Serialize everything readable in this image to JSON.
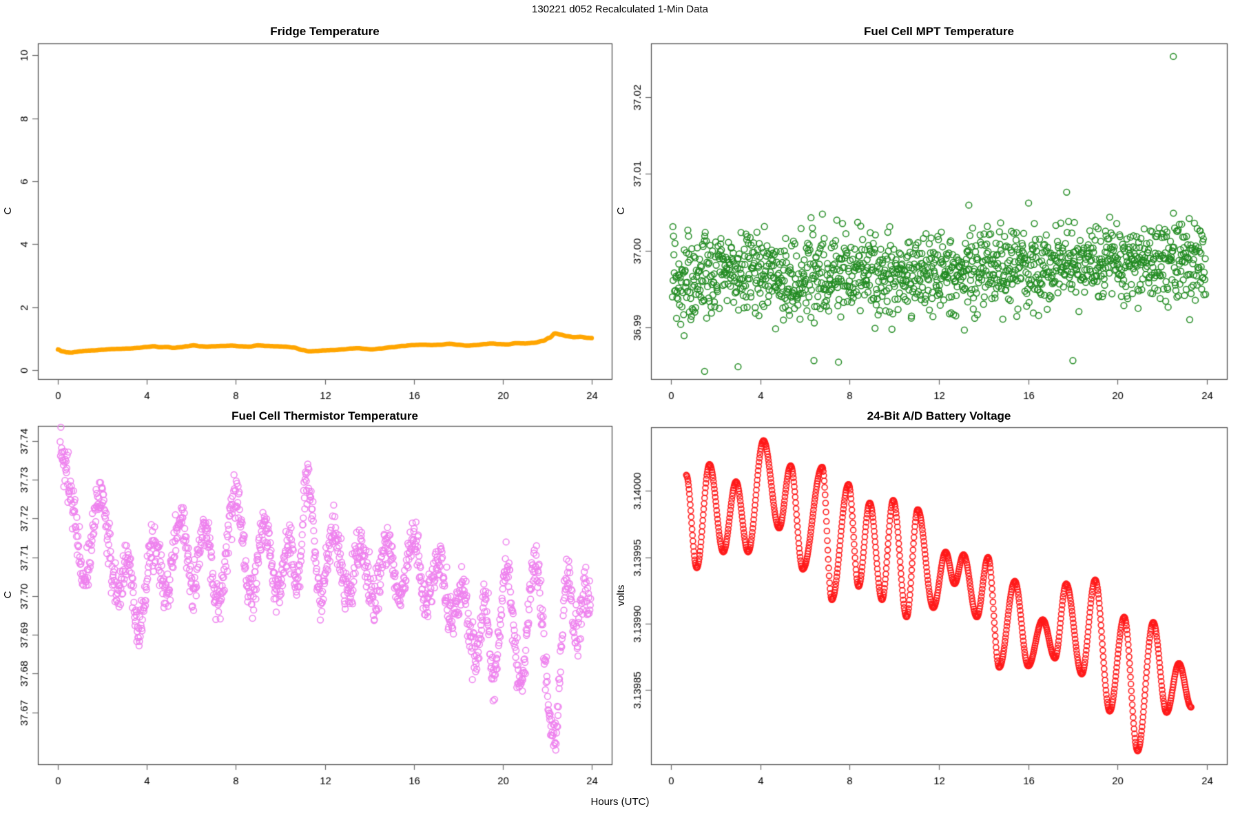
{
  "page": {
    "main_title": "130221   d052   Recalculated 1-Min Data",
    "xlabel_shared": "Hours (UTC)",
    "background": "#FFFFFF",
    "axis_color": "#444444",
    "tick_color": "#666666",
    "text_color": "#000000"
  },
  "chart_data": [
    {
      "id": "fridge-temperature",
      "type": "line",
      "title": "Fridge Temperature",
      "ylabel": "C",
      "xlabel": "",
      "color": "#FFA500",
      "xlim": [
        -0.9,
        24.9
      ],
      "ylim": [
        -0.28,
        10.38
      ],
      "xticks": [
        0,
        4,
        8,
        12,
        16,
        20,
        24
      ],
      "xtick_labels": [
        "0",
        "4",
        "8",
        "12",
        "16",
        "20",
        "24"
      ],
      "yticks": [
        0,
        2,
        4,
        6,
        8,
        10
      ],
      "ytick_labels": [
        "0",
        "2",
        "4",
        "6",
        "8",
        "10"
      ],
      "grid": false,
      "legend": null,
      "render": {
        "mode": "thick-line",
        "sample_minutes": 3,
        "line_width": 6.5
      },
      "anchors": [
        [
          0,
          0.66
        ],
        [
          0.2,
          0.6
        ],
        [
          0.4,
          0.57
        ],
        [
          0.6,
          0.56
        ],
        [
          0.8,
          0.58
        ],
        [
          1,
          0.6
        ],
        [
          1.3,
          0.62
        ],
        [
          1.6,
          0.63
        ],
        [
          2,
          0.65
        ],
        [
          2.4,
          0.67
        ],
        [
          2.8,
          0.68
        ],
        [
          3.2,
          0.69
        ],
        [
          3.6,
          0.71
        ],
        [
          4,
          0.74
        ],
        [
          4.3,
          0.76
        ],
        [
          4.6,
          0.73
        ],
        [
          4.9,
          0.74
        ],
        [
          5.2,
          0.71
        ],
        [
          5.5,
          0.73
        ],
        [
          5.8,
          0.76
        ],
        [
          6.1,
          0.79
        ],
        [
          6.4,
          0.76
        ],
        [
          6.7,
          0.75
        ],
        [
          7,
          0.76
        ],
        [
          7.4,
          0.77
        ],
        [
          7.8,
          0.78
        ],
        [
          8.2,
          0.76
        ],
        [
          8.6,
          0.75
        ],
        [
          9,
          0.79
        ],
        [
          9.4,
          0.77
        ],
        [
          9.8,
          0.76
        ],
        [
          10.2,
          0.75
        ],
        [
          10.6,
          0.72
        ],
        [
          11,
          0.64
        ],
        [
          11.3,
          0.6
        ],
        [
          11.6,
          0.61
        ],
        [
          12,
          0.63
        ],
        [
          12.4,
          0.64
        ],
        [
          12.8,
          0.66
        ],
        [
          13.2,
          0.69
        ],
        [
          13.5,
          0.7
        ],
        [
          13.8,
          0.68
        ],
        [
          14.1,
          0.66
        ],
        [
          14.5,
          0.69
        ],
        [
          15,
          0.73
        ],
        [
          15.5,
          0.77
        ],
        [
          16,
          0.8
        ],
        [
          16.4,
          0.81
        ],
        [
          16.8,
          0.8
        ],
        [
          17.2,
          0.81
        ],
        [
          17.6,
          0.84
        ],
        [
          18,
          0.81
        ],
        [
          18.4,
          0.78
        ],
        [
          18.8,
          0.8
        ],
        [
          19.2,
          0.83
        ],
        [
          19.5,
          0.85
        ],
        [
          19.8,
          0.83
        ],
        [
          20.2,
          0.82
        ],
        [
          20.6,
          0.86
        ],
        [
          21,
          0.85
        ],
        [
          21.4,
          0.87
        ],
        [
          21.8,
          0.93
        ],
        [
          22.1,
          1.03
        ],
        [
          22.35,
          1.17
        ],
        [
          22.6,
          1.13
        ],
        [
          22.9,
          1.08
        ],
        [
          23.2,
          1.05
        ],
        [
          23.5,
          1.06
        ],
        [
          23.8,
          1.03
        ],
        [
          24,
          1.02
        ]
      ]
    },
    {
      "id": "fuel-cell-mpt-temperature",
      "type": "scatter",
      "title": "Fuel Cell MPT Temperature",
      "ylabel": "C",
      "xlabel": "",
      "color": "#228B22",
      "xlim": [
        -0.9,
        24.9
      ],
      "ylim": [
        36.9833,
        37.027
      ],
      "xticks": [
        0,
        4,
        8,
        12,
        16,
        20,
        24
      ],
      "xtick_labels": [
        "0",
        "4",
        "8",
        "12",
        "16",
        "20",
        "24"
      ],
      "yticks": [
        36.99,
        37.0,
        37.01,
        37.02
      ],
      "ytick_labels": [
        "36.99",
        "37.00",
        "37.01",
        "37.02"
      ],
      "grid": false,
      "legend": null,
      "render": {
        "mode": "cloud",
        "n": 1380,
        "t_start": 0.05,
        "t_end": 23.95,
        "noise_sd": 0.0028,
        "clamp": [
          36.9839,
          37.0112
        ],
        "radius": 4.4,
        "stroke_width": 1.5
      },
      "base_anchors": [
        [
          0,
          36.9962
        ],
        [
          3,
          36.9972
        ],
        [
          6,
          36.9968
        ],
        [
          9,
          36.997
        ],
        [
          12,
          36.9973
        ],
        [
          15,
          36.9979
        ],
        [
          18,
          36.9982
        ],
        [
          21,
          36.9984
        ],
        [
          24,
          36.9982
        ]
      ],
      "outliers": [
        [
          22.5,
          37.0253
        ],
        [
          1.5,
          36.9843
        ],
        [
          3.0,
          36.9849
        ],
        [
          6.4,
          36.9857
        ],
        [
          7.5,
          36.9855
        ],
        [
          18.0,
          36.9857
        ]
      ]
    },
    {
      "id": "fuel-cell-thermistor-temperature",
      "type": "scatter",
      "title": "Fuel Cell Thermistor Temperature",
      "ylabel": "C",
      "xlabel": "",
      "color": "#EE82EE",
      "xlim": [
        -0.9,
        24.9
      ],
      "ylim": [
        37.6566,
        37.7439
      ],
      "xticks": [
        0,
        4,
        8,
        12,
        16,
        20,
        24
      ],
      "xtick_labels": [
        "0",
        "4",
        "8",
        "12",
        "16",
        "20",
        "24"
      ],
      "yticks": [
        37.67,
        37.68,
        37.69,
        37.7,
        37.71,
        37.72,
        37.73,
        37.74
      ],
      "ytick_labels": [
        "37.67",
        "37.68",
        "37.69",
        "37.70",
        "37.71",
        "37.72",
        "37.73",
        "37.74"
      ],
      "grid": false,
      "legend": null,
      "render": {
        "mode": "noisy-chain",
        "sample_minutes": 1,
        "noise_sd": 0.0028,
        "radius": 4.4,
        "stroke_width": 1.5
      },
      "anchors": [
        [
          0.1,
          37.738
        ],
        [
          0.5,
          37.729
        ],
        [
          1.2,
          37.704
        ],
        [
          1.9,
          37.726
        ],
        [
          2.7,
          37.7
        ],
        [
          3.2,
          37.71
        ],
        [
          3.6,
          37.691
        ],
        [
          4.3,
          37.713
        ],
        [
          4.9,
          37.7
        ],
        [
          5.5,
          37.72
        ],
        [
          6.1,
          37.703
        ],
        [
          6.6,
          37.718
        ],
        [
          7.2,
          37.698
        ],
        [
          8,
          37.726
        ],
        [
          8.7,
          37.7
        ],
        [
          9.3,
          37.718
        ],
        [
          9.9,
          37.701
        ],
        [
          10.4,
          37.714
        ],
        [
          10.8,
          37.703
        ],
        [
          11.2,
          37.731
        ],
        [
          11.8,
          37.7
        ],
        [
          12.4,
          37.718
        ],
        [
          13,
          37.7
        ],
        [
          13.6,
          37.712
        ],
        [
          14.2,
          37.698
        ],
        [
          14.8,
          37.714
        ],
        [
          15.4,
          37.7
        ],
        [
          16,
          37.716
        ],
        [
          16.6,
          37.698
        ],
        [
          17.1,
          37.71
        ],
        [
          17.7,
          37.694
        ],
        [
          18.15,
          37.702
        ],
        [
          18.8,
          37.684
        ],
        [
          19.2,
          37.7
        ],
        [
          19.6,
          37.678
        ],
        [
          20.15,
          37.707
        ],
        [
          20.8,
          37.678
        ],
        [
          21.45,
          37.709
        ],
        [
          22.3,
          37.663
        ],
        [
          22.9,
          37.704
        ],
        [
          23.35,
          37.69
        ],
        [
          23.7,
          37.702
        ],
        [
          23.95,
          37.696
        ]
      ]
    },
    {
      "id": "battery-voltage-24bit-ad",
      "type": "scatter",
      "title": "24-Bit A/D Battery Voltage",
      "ylabel": "volts",
      "xlabel": "",
      "color": "#FF1A1A",
      "xlim": [
        -0.9,
        24.9
      ],
      "ylim": [
        3.139794,
        3.140048
      ],
      "xticks": [
        0,
        4,
        8,
        12,
        16,
        20,
        24
      ],
      "xtick_labels": [
        "0",
        "4",
        "8",
        "12",
        "16",
        "20",
        "24"
      ],
      "yticks": [
        3.13985,
        3.1399,
        3.13995,
        3.14
      ],
      "ytick_labels": [
        "3.13985",
        "3.13990",
        "3.13995",
        "3.14000"
      ],
      "grid": false,
      "legend": null,
      "render": {
        "mode": "circle-chain",
        "sample_minutes": 1.2,
        "noise_sd": 0,
        "radius": 4.0,
        "stroke_width": 1.6
      },
      "anchors": [
        [
          0.68,
          3.140012
        ],
        [
          1.15,
          3.139942
        ],
        [
          1.72,
          3.14002
        ],
        [
          2.34,
          3.139954
        ],
        [
          2.91,
          3.140007
        ],
        [
          3.45,
          3.139954
        ],
        [
          4.14,
          3.140038
        ],
        [
          4.84,
          3.139972
        ],
        [
          5.36,
          3.140019
        ],
        [
          5.9,
          3.139941
        ],
        [
          6.77,
          3.140018
        ],
        [
          7.2,
          3.139918
        ],
        [
          7.95,
          3.140005
        ],
        [
          8.4,
          3.139928
        ],
        [
          8.9,
          3.139991
        ],
        [
          9.45,
          3.139918
        ],
        [
          9.95,
          3.139993
        ],
        [
          10.55,
          3.139905
        ],
        [
          11.05,
          3.139986
        ],
        [
          11.75,
          3.139912
        ],
        [
          12.3,
          3.139954
        ],
        [
          12.7,
          3.13993
        ],
        [
          13.1,
          3.139952
        ],
        [
          13.7,
          3.139905
        ],
        [
          14.2,
          3.13995
        ],
        [
          14.7,
          3.139867
        ],
        [
          15.4,
          3.139932
        ],
        [
          16,
          3.139868
        ],
        [
          16.65,
          3.139903
        ],
        [
          17.2,
          3.139874
        ],
        [
          17.7,
          3.13993
        ],
        [
          18.4,
          3.139862
        ],
        [
          19,
          3.139933
        ],
        [
          19.65,
          3.139834
        ],
        [
          20.3,
          3.139905
        ],
        [
          20.9,
          3.139804
        ],
        [
          21.6,
          3.139901
        ],
        [
          22.2,
          3.139833
        ],
        [
          22.75,
          3.13987
        ],
        [
          23.3,
          3.139837
        ]
      ]
    }
  ]
}
